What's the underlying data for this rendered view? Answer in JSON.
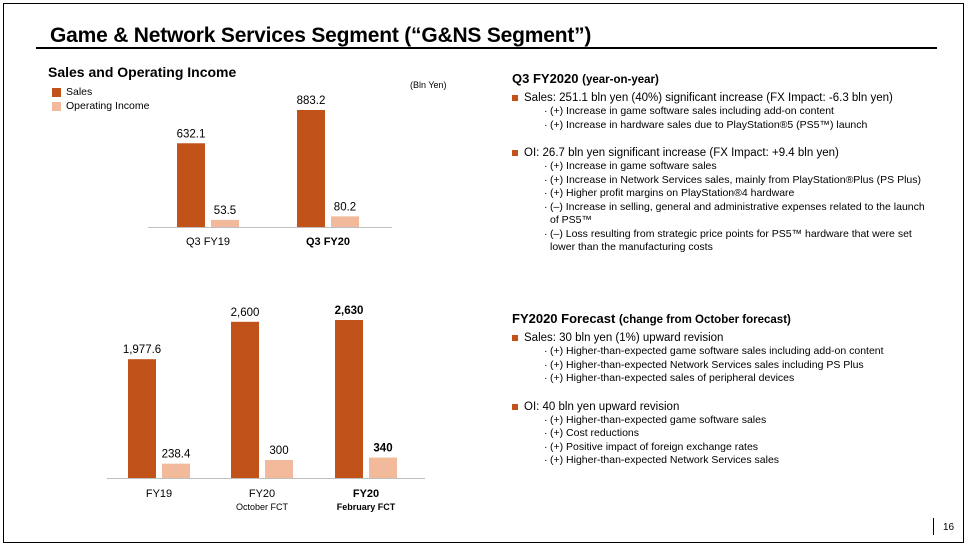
{
  "title": "Game & Network Services Segment (“G&NS Segment”)",
  "chart_heading": "Sales and Operating Income",
  "unit": "(Bln Yen)",
  "colors": {
    "sales": "#c0521a",
    "oi": "#f2b99a",
    "bullet": "#c0521a"
  },
  "legend": {
    "sales": "Sales",
    "oi": "Operating Income"
  },
  "chart_data": [
    {
      "type": "bar",
      "categories": [
        "Q3 FY19",
        "Q3 FY20"
      ],
      "category_bold": [
        false,
        true
      ],
      "series": [
        {
          "name": "Sales",
          "values": [
            632.1,
            883.2
          ],
          "labels": [
            "632.1",
            "883.2"
          ]
        },
        {
          "name": "Operating Income",
          "values": [
            53.5,
            80.2
          ],
          "labels": [
            "53.5",
            "80.2"
          ]
        }
      ],
      "label_bold": [
        false,
        false
      ]
    },
    {
      "type": "bar",
      "categories": [
        "FY19",
        "FY20",
        "FY20"
      ],
      "category_sub": [
        "",
        "October FCT",
        "February FCT"
      ],
      "category_bold": [
        false,
        false,
        true
      ],
      "series": [
        {
          "name": "Sales",
          "values": [
            1977.6,
            2600,
            2630
          ],
          "labels": [
            "1,977.6",
            "2,600",
            "2,630"
          ]
        },
        {
          "name": "Operating Income",
          "values": [
            238.4,
            300,
            340
          ],
          "labels": [
            "238.4",
            "300",
            "340"
          ]
        }
      ],
      "label_bold": [
        false,
        false,
        true
      ]
    }
  ],
  "q3": {
    "heading": "Q3 FY2020",
    "heading_sub": "(year-on-year)",
    "bullets": [
      {
        "text": "Sales: 251.1 bln yen (40%) significant increase (FX Impact: -6.3 bln yen)",
        "items": [
          "(+) Increase in game software sales including add-on content",
          "(+) Increase in hardware sales due to PlayStation®5 (PS5™) launch"
        ]
      },
      {
        "text": "OI: 26.7 bln yen significant increase (FX Impact: +9.4 bln yen)",
        "items": [
          "(+) Increase in game software sales",
          "(+) Increase in Network Services sales, mainly from PlayStation®Plus (PS Plus)",
          "(+) Higher profit margins on PlayStation®4 hardware",
          "(–) Increase in selling, general and administrative expenses related to the launch of PS5™",
          "(–) Loss resulting from strategic price points for PS5™ hardware that were set lower than the manufacturing costs"
        ]
      }
    ]
  },
  "fy": {
    "heading": "FY2020 Forecast",
    "heading_sub": "(change from October forecast)",
    "bullets": [
      {
        "text": "Sales: 30 bln yen (1%) upward revision",
        "items": [
          "(+) Higher-than-expected game software sales including add-on content",
          "(+) Higher-than-expected Network Services sales including PS Plus",
          "(+) Higher-than-expected sales of peripheral devices"
        ]
      },
      {
        "text": "OI: 40 bln yen upward revision",
        "items": [
          "(+) Higher-than-expected game software sales",
          "(+) Cost reductions",
          "(+) Positive impact of foreign exchange rates",
          "(+) Higher-than-expected Network Services sales"
        ]
      }
    ]
  },
  "page_number": "16"
}
